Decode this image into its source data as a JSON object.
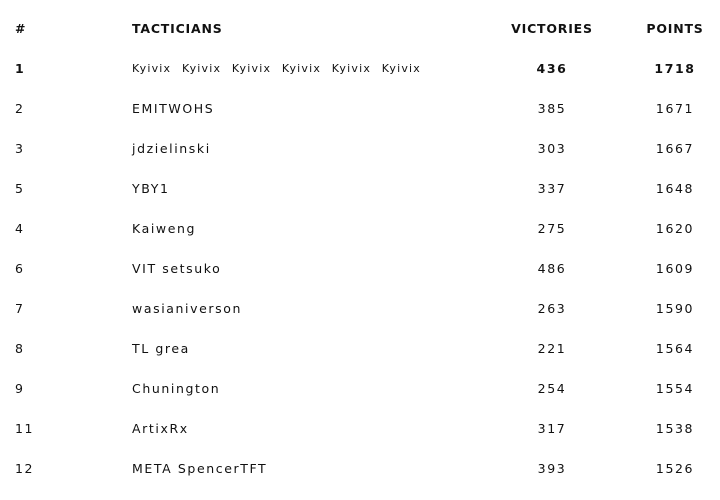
{
  "table": {
    "headers": {
      "rank": "#",
      "tacticians": "TACTICIANS",
      "victories": "VICTORIES",
      "points": "POINTS"
    },
    "rows": [
      {
        "rank": "1",
        "name": "Kyivix Kyivix Kyivix   Kyivix Kyivix Kyivix",
        "victories": "436",
        "points": "1718"
      },
      {
        "rank": "2",
        "name": "EMITWOHS",
        "victories": "385",
        "points": "1671"
      },
      {
        "rank": "3",
        "name": "jdzielinski",
        "victories": "303",
        "points": "1667"
      },
      {
        "rank": "5",
        "name": "YBY1",
        "victories": "337",
        "points": "1648"
      },
      {
        "rank": "4",
        "name": "Kaiweng",
        "victories": "275",
        "points": "1620"
      },
      {
        "rank": "6",
        "name": "VIT setsuko",
        "victories": "486",
        "points": "1609"
      },
      {
        "rank": "7",
        "name": "wasianiverson",
        "victories": "263",
        "points": "1590"
      },
      {
        "rank": "8",
        "name": "TL grea",
        "victories": "221",
        "points": "1564"
      },
      {
        "rank": "9",
        "name": "Chunington",
        "victories": "254",
        "points": "1554"
      },
      {
        "rank": "11",
        "name": "ArtixRx",
        "victories": "317",
        "points": "1538"
      },
      {
        "rank": "12",
        "name": "META SpencerTFT",
        "victories": "393",
        "points": "1526"
      }
    ]
  }
}
